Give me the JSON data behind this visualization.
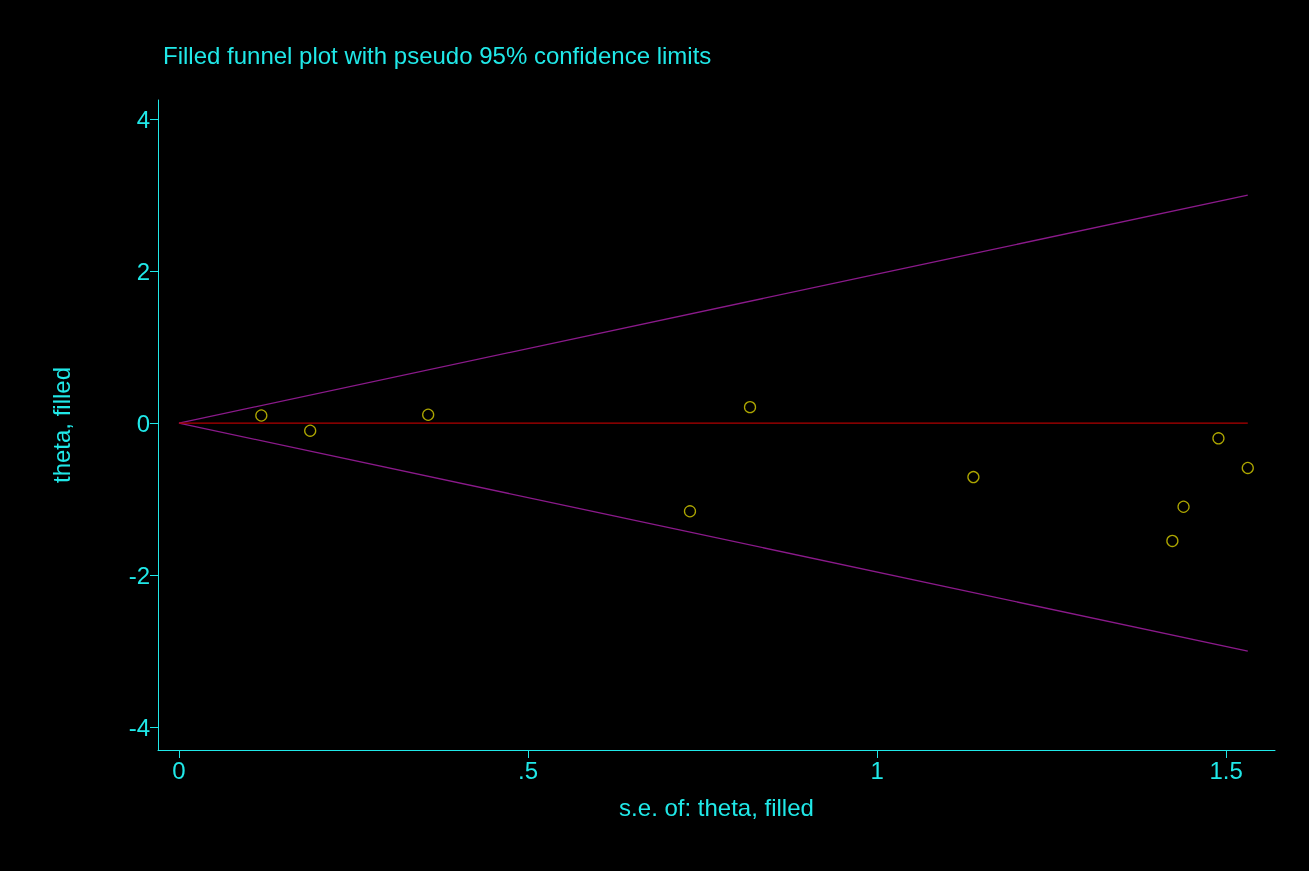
{
  "chart_data": {
    "type": "scatter",
    "title": "Filled funnel plot with pseudo 95% confidence limits",
    "xlabel": "s.e. of: theta, filled",
    "ylabel": "theta, filled",
    "grid": false,
    "xlim": [
      -0.03,
      1.57
    ],
    "xticks": [
      0,
      {
        "value": 0.5,
        "label": ".5"
      },
      1,
      1.5
    ],
    "ylim": [
      -4.3,
      4.25
    ],
    "yticks": [
      -4,
      -2,
      0,
      2,
      4
    ],
    "series": [
      {
        "type": "line",
        "marker": "none",
        "color": "#8b1a8b",
        "x": [
          0,
          1.531
        ],
        "values": [
          0,
          3.0
        ]
      },
      {
        "type": "line",
        "marker": "none",
        "color": "#8b1a8b",
        "x": [
          0,
          1.531
        ],
        "values": [
          0,
          -3.0
        ]
      },
      {
        "type": "line",
        "marker": "none",
        "color": "#b00000",
        "x": [
          0,
          1.531
        ],
        "values": [
          0,
          0
        ]
      },
      {
        "marker": "circle",
        "color": "#d8d000",
        "x": [
          0.118,
          0.188,
          0.357,
          0.818,
          0.732,
          1.138,
          1.423,
          1.439,
          1.489,
          1.531
        ],
        "values": [
          0.1,
          -0.1,
          0.11,
          0.21,
          -1.16,
          -0.71,
          -1.55,
          -1.1,
          -0.2,
          -0.59
        ]
      }
    ]
  }
}
